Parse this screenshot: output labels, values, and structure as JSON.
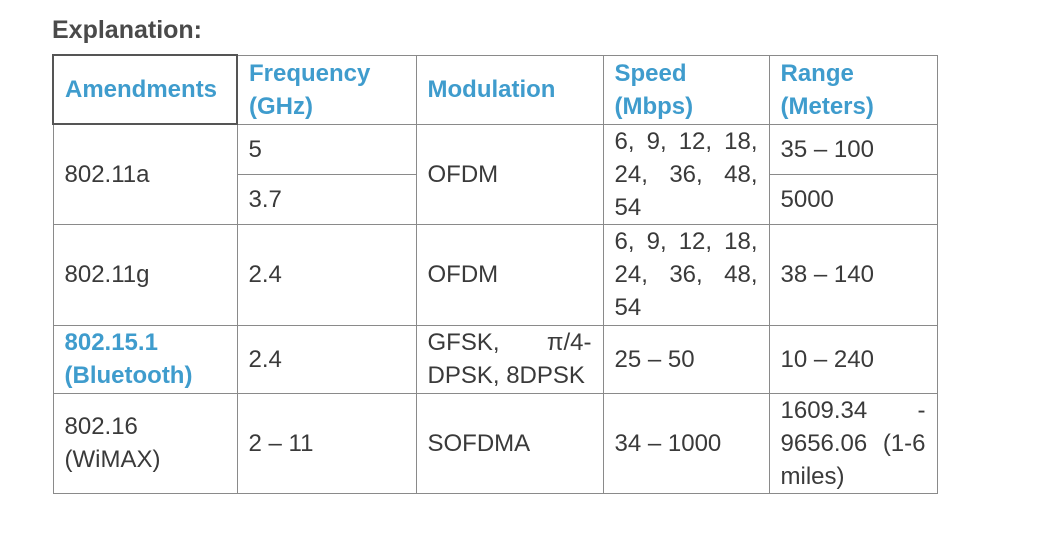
{
  "heading": "Explanation:",
  "table": {
    "headers": {
      "amendments": "Amendments",
      "frequency_l1": "Frequency",
      "frequency_l2": "(GHz)",
      "modulation": "Modulation",
      "speed_l1": "Speed",
      "speed_l2": "(Mbps)",
      "range_l1": "Range",
      "range_l2": "(Meters)"
    },
    "rows": {
      "a": {
        "amendment": "802.11a",
        "freq_1": "5",
        "freq_2": "3.7",
        "modulation": "OFDM",
        "speed": "6, 9, 12, 18, 24, 36, 48, 54",
        "range_1": "35 – 100",
        "range_2": "5000"
      },
      "g": {
        "amendment": "802.11g",
        "freq": "2.4",
        "modulation": "OFDM",
        "speed": "6, 9, 12, 18, 24, 36, 48, 54",
        "range": "38 – 140"
      },
      "bt": {
        "amendment_l1": "802.15.1",
        "amendment_l2": "(Bluetooth)",
        "freq": "2.4",
        "modulation": "GFSK, π/4-DPSK, 8DPSK",
        "speed": "25 – 50",
        "range": "10 – 240"
      },
      "wimax": {
        "amendment_l1": "802.16",
        "amendment_l2": "(WiMAX)",
        "freq": "2 – 11",
        "modulation": "SOFDMA",
        "speed": "34 – 1000",
        "range": "1609.34 - 9656.06 (1-6 miles)"
      }
    }
  }
}
